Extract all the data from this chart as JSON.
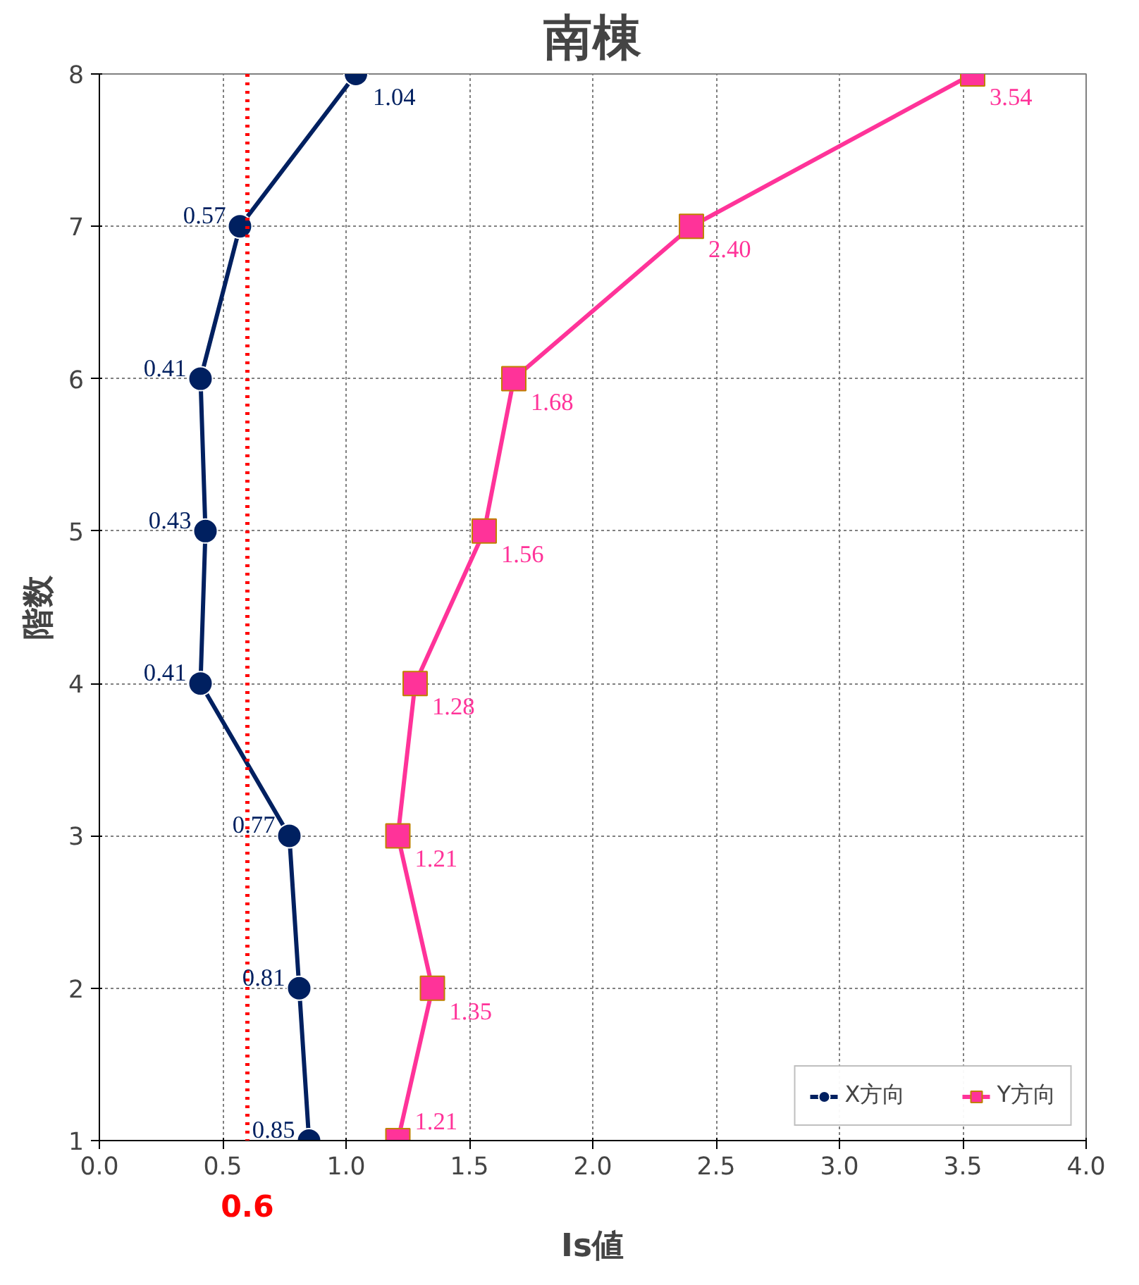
{
  "chart_data": {
    "type": "line",
    "orientation": "horizontal",
    "title": "南棟",
    "xlabel": "Is値",
    "ylabel": "階数",
    "xlim": [
      0,
      4
    ],
    "xticks": [
      {
        "value": 0,
        "label": "0.0"
      },
      {
        "value": 0.5,
        "label": "0.5"
      },
      {
        "value": 1,
        "label": "1.0"
      },
      {
        "value": 1.5,
        "label": "1.5"
      },
      {
        "value": 2,
        "label": "2.0"
      },
      {
        "value": 2.5,
        "label": "2.5"
      },
      {
        "value": 3,
        "label": "3.0"
      },
      {
        "value": 3.5,
        "label": "3.5"
      },
      {
        "value": 4,
        "label": "4.0"
      }
    ],
    "ylim": [
      1,
      8
    ],
    "yticks": [
      1,
      2,
      3,
      4,
      5,
      6,
      7,
      8
    ],
    "grid": true,
    "legend": "bottom right",
    "series": [
      {
        "name": "X方向",
        "color": "#002060",
        "marker": "circle",
        "x": [
          1,
          2,
          3,
          4,
          5,
          6,
          7,
          8
        ],
        "values": [
          0.85,
          0.81,
          0.77,
          0.41,
          0.43,
          0.41,
          0.57,
          1.04
        ],
        "value_labels": [
          "0.85",
          "0.81",
          "0.77",
          "0.41",
          "0.43",
          "0.41",
          "0.57",
          "1.04"
        ]
      },
      {
        "name": "Y方向",
        "color": "#ff3399",
        "marker": "square",
        "x": [
          1,
          2,
          3,
          4,
          5,
          6,
          7,
          8
        ],
        "values": [
          1.21,
          1.35,
          1.21,
          1.28,
          1.56,
          1.68,
          2.4,
          3.54
        ],
        "value_labels": [
          "1.21",
          "1.35",
          "1.21",
          "1.28",
          "1.56",
          "1.68",
          "2.40",
          "3.54"
        ]
      }
    ],
    "ref_lines": [
      {
        "axis": "x",
        "value": 0.6,
        "label": "0.6",
        "color": "#ff0000",
        "line_style": "dotted"
      }
    ]
  }
}
